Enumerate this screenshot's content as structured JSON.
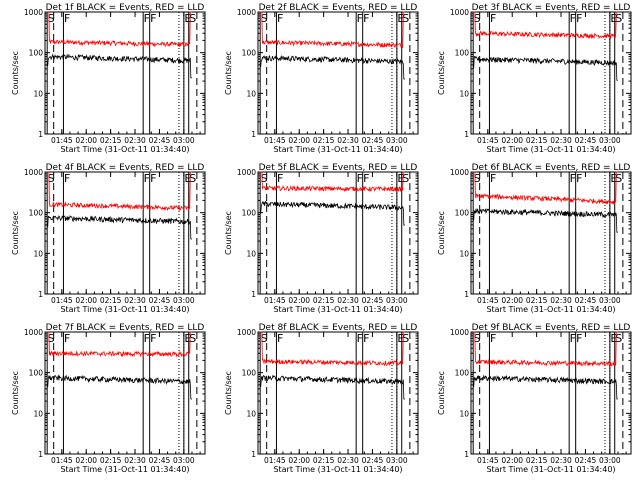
{
  "chart_data": {
    "type": "line",
    "layout": "3x3 grid",
    "y_scale": "log",
    "ylim": [
      1,
      1000
    ],
    "y_ticks": [
      1,
      10,
      100,
      1000
    ],
    "y_tick_labels": [
      "1",
      "10",
      "100",
      "1000"
    ],
    "ylabel": "Counts/sec",
    "xlabel": "Start Time (31-Oct-11 01:34:40)",
    "x_tick_labels": [
      "01:45",
      "02:00",
      "02:15",
      "02:30",
      "02:45",
      "03:00"
    ],
    "legend_text": "BLACK = Events, RED = LLD",
    "series_colors": {
      "events": "#000000",
      "lld": "#ff0000"
    },
    "markers": [
      {
        "label": "S",
        "time": "01:36",
        "style": "solid"
      },
      {
        "label": "F",
        "time": "01:46",
        "style": "solid"
      },
      {
        "label": "F",
        "time": "02:35",
        "style": "solid"
      },
      {
        "label": "F",
        "time": "02:39",
        "style": "solid"
      },
      {
        "label": "E",
        "time": "03:00",
        "style": "solid"
      },
      {
        "label": "S",
        "time": "03:03",
        "style": "solid"
      }
    ],
    "dashed_lines": [
      "01:40",
      "03:08"
    ],
    "dotted_lines": [
      "02:57",
      "03:00"
    ],
    "panels": [
      {
        "title": "Det 1f BLACK = Events, RED = LLD",
        "events_level": 80,
        "lld_level": 185,
        "lld_slope": -0.15
      },
      {
        "title": "Det 2f BLACK = Events, RED = LLD",
        "events_level": 75,
        "lld_level": 180,
        "lld_slope": -0.15
      },
      {
        "title": "Det 3f BLACK = Events, RED = LLD",
        "events_level": 70,
        "lld_level": 300,
        "lld_slope": -0.15
      },
      {
        "title": "Det 4f BLACK = Events, RED = LLD",
        "events_level": 75,
        "lld_level": 160,
        "lld_slope": -0.2
      },
      {
        "title": "Det 5f BLACK = Events, RED = LLD",
        "events_level": 165,
        "lld_level": 400,
        "lld_slope": -0.05
      },
      {
        "title": "Det 6f BLACK = Events, RED = LLD",
        "events_level": 110,
        "lld_level": 260,
        "lld_slope": -0.3
      },
      {
        "title": "Det 7f BLACK = Events, RED = LLD",
        "events_level": 75,
        "lld_level": 300,
        "lld_slope": -0.05
      },
      {
        "title": "Det 8f BLACK = Events, RED = LLD",
        "events_level": 75,
        "lld_level": 190,
        "lld_slope": -0.1
      },
      {
        "title": "Det 9f BLACK = Events, RED = LLD",
        "events_level": 75,
        "lld_level": 185,
        "lld_slope": -0.1
      }
    ]
  }
}
